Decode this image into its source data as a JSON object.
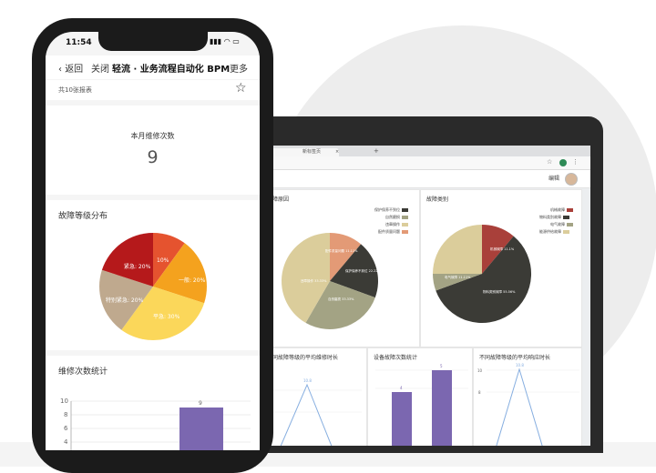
{
  "phone": {
    "status": {
      "time": "11:54",
      "icons": "▮▮▮ ◠ ▭"
    },
    "nav": {
      "back": "返回",
      "close": "关闭",
      "title": "轻流 · 业务流程自动化 BPM",
      "more": "更多"
    },
    "report_count": "共10张报表",
    "kpi": {
      "label": "本月维修次数",
      "value": "9"
    },
    "fault_level": {
      "title": "故障等级分布",
      "labels": [
        "10%",
        "一般: 20%",
        "平急: 30%",
        "特别紧急: 20%",
        "紧急: 20%"
      ]
    },
    "repair_count": {
      "title": "维修次数统计",
      "ticks": [
        "10",
        "8",
        "6",
        "4"
      ],
      "bar_label": "9"
    }
  },
  "laptop": {
    "tab": {
      "title": "新标签页",
      "close": "×",
      "plus": "+"
    },
    "toolbar": {
      "edit": "编辑"
    },
    "cards": {
      "fault_cause": {
        "title": "故障原因",
        "legend": [
          "保护保养不到位",
          "自然磨损",
          "违章操作",
          "配件质量问题"
        ],
        "slice_labels": [
          "配件质量问题 11.11%",
          "保护保养不到位 22.22%",
          "自然磨损 33.33%",
          "违章操作 33.33%"
        ]
      },
      "fault_category": {
        "title": "故障类别",
        "legend": [
          "机械故障",
          "物料类别故障",
          "电气故障",
          "能源供给故障"
        ],
        "slice_labels": [
          "机械故障 11.1%",
          "物料类别故障 55.56%",
          "电气故障 11.11%"
        ]
      },
      "avg_repair": {
        "title": "不同故障等级的平均维修时长",
        "peak_label": "10.8"
      },
      "device_fault": {
        "title": "设备故障次数统计",
        "bar_labels": [
          "4",
          "5"
        ]
      },
      "avg_response": {
        "title": "不同故障等级的平均响应时长",
        "peak_label": "10.8"
      }
    }
  },
  "colors": {
    "red": "#b5191b",
    "orange_red": "#e5532f",
    "orange": "#f4a21e",
    "yellow": "#fbd75a",
    "tan": "#bfa98e",
    "dark": "#3b3b36",
    "olive": "#a3a384",
    "cream": "#dbcd9b",
    "salmon": "#e39a76",
    "purple": "#7b67b0",
    "line_blue": "#86aee0"
  },
  "chart_data": [
    {
      "type": "pie",
      "title": "故障等级分布",
      "categories": [
        "",
        "一般",
        "平急",
        "特别紧急",
        "紧急"
      ],
      "values": [
        10,
        20,
        30,
        20,
        20
      ]
    },
    {
      "type": "bar",
      "title": "维修次数统计",
      "values": [
        9
      ],
      "ylim": [
        4,
        10
      ]
    },
    {
      "type": "pie",
      "title": "故障原因",
      "categories": [
        "配件质量问题",
        "保护保养不到位",
        "自然磨损",
        "违章操作"
      ],
      "values": [
        11.11,
        22.22,
        33.33,
        33.33
      ]
    },
    {
      "type": "pie",
      "title": "故障类别",
      "categories": [
        "机械故障",
        "物料类别故障",
        "电气故障",
        "能源供给故障"
      ],
      "values": [
        11.1,
        55.56,
        11.11,
        22.22
      ]
    },
    {
      "type": "bar",
      "title": "设备故障次数统计",
      "values": [
        4,
        5
      ]
    },
    {
      "type": "line",
      "title": "不同故障等级的平均响应时长",
      "ticks": [
        "10",
        "8"
      ],
      "peak": 10.8
    }
  ]
}
